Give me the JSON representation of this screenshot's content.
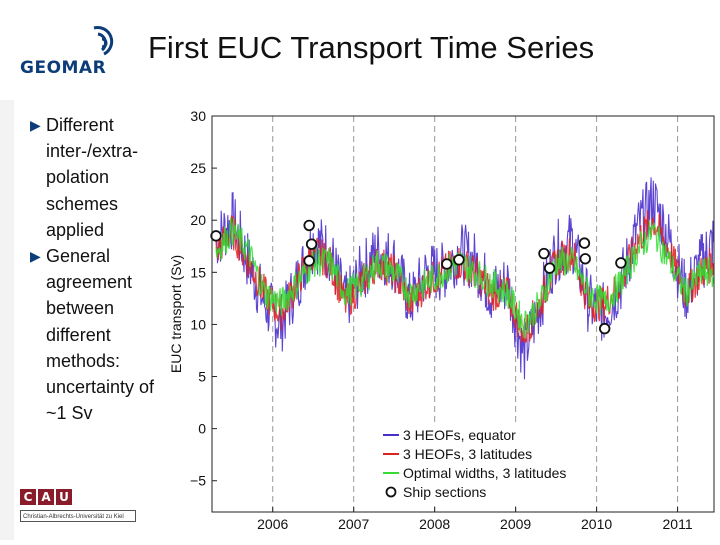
{
  "header": {
    "logo_text": "GEOMAR",
    "title": "First EUC Transport Time Series"
  },
  "bullets": [
    "Different inter-/extra-polation schemes applied",
    "General agreement between different methods: uncertainty of ~1 Sv"
  ],
  "footer_logo": {
    "letters": [
      "C",
      "A",
      "U"
    ],
    "subtitle": "Christian-Albrechts-Universität zu Kiel"
  },
  "colors": {
    "blue": "#4b2fcc",
    "red": "#e01f1f",
    "green": "#33dd33",
    "brand": "#0d3d78",
    "cau": "#8a1b2a"
  },
  "chart_data": {
    "type": "line",
    "title": "",
    "xlabel": "",
    "ylabel": "EUC transport (Sv)",
    "xlim": [
      2005.25,
      2011.45
    ],
    "ylim": [
      -8,
      30
    ],
    "xticks": [
      2006,
      2007,
      2008,
      2009,
      2010,
      2011
    ],
    "xtick_labels": [
      "2006",
      "2007",
      "2008",
      "2009",
      "2010",
      "2011"
    ],
    "yticks": [
      -5,
      0,
      5,
      10,
      15,
      20,
      25,
      30
    ],
    "ytick_labels": [
      "−5",
      "0",
      "5",
      "10",
      "15",
      "20",
      "25",
      "30"
    ],
    "dashed_year_lines": [
      2006,
      2007,
      2008,
      2009,
      2010,
      2011
    ],
    "legend": {
      "placement": "bottom-right",
      "entries": [
        {
          "label": "3 HEOFs, equator",
          "series": "blue"
        },
        {
          "label": "3 HEOFs, 3 latitudes",
          "series": "red"
        },
        {
          "label": "Optimal widths, 3 latitudes",
          "series": "green"
        },
        {
          "label": "Ship sections",
          "series": "ships"
        }
      ]
    },
    "series": [
      {
        "name": "3 HEOFs, equator",
        "color": "blue",
        "x": [
          2005.3,
          2005.5,
          2005.7,
          2005.9,
          2006.1,
          2006.3,
          2006.5,
          2006.7,
          2006.9,
          2007.1,
          2007.3,
          2007.5,
          2007.7,
          2007.9,
          2008.1,
          2008.3,
          2008.5,
          2008.7,
          2008.9,
          2009.1,
          2009.3,
          2009.5,
          2009.7,
          2009.9,
          2010.1,
          2010.3,
          2010.5,
          2010.7,
          2010.9,
          2011.1,
          2011.3,
          2011.45
        ],
        "values": [
          18,
          20,
          16,
          12,
          10,
          14,
          18,
          17,
          12,
          15,
          17,
          16,
          12,
          15,
          15,
          17,
          16,
          13,
          14,
          7,
          12,
          17,
          18,
          12,
          11,
          14,
          19,
          22,
          18,
          13,
          16,
          18
        ]
      },
      {
        "name": "3 HEOFs, 3 latitudes",
        "color": "red",
        "x": [
          2005.3,
          2005.5,
          2005.7,
          2005.9,
          2006.1,
          2006.3,
          2006.5,
          2006.7,
          2006.9,
          2007.1,
          2007.3,
          2007.5,
          2007.7,
          2007.9,
          2008.1,
          2008.3,
          2008.5,
          2008.7,
          2008.9,
          2009.1,
          2009.3,
          2009.5,
          2009.7,
          2009.9,
          2010.1,
          2010.3,
          2010.5,
          2010.7,
          2010.9,
          2011.1,
          2011.3,
          2011.45
        ],
        "values": [
          17,
          19,
          16,
          13,
          11,
          14,
          17,
          16,
          12,
          14,
          16,
          15,
          12,
          14,
          15,
          16,
          15,
          13,
          13,
          9,
          12,
          16,
          17,
          12,
          12,
          14,
          18,
          20,
          17,
          13,
          15,
          16
        ]
      },
      {
        "name": "Optimal widths, 3 latitudes",
        "color": "green",
        "x": [
          2005.3,
          2005.5,
          2005.7,
          2005.9,
          2006.1,
          2006.3,
          2006.5,
          2006.7,
          2006.9,
          2007.1,
          2007.3,
          2007.5,
          2007.7,
          2007.9,
          2008.1,
          2008.3,
          2008.5,
          2008.7,
          2008.9,
          2009.1,
          2009.3,
          2009.5,
          2009.7,
          2009.9,
          2010.1,
          2010.3,
          2010.5,
          2010.7,
          2010.9,
          2011.1,
          2011.3,
          2011.45
        ],
        "values": [
          17,
          19,
          17,
          13,
          12,
          14,
          16,
          16,
          13,
          14,
          16,
          15,
          13,
          14,
          15,
          16,
          15,
          14,
          13,
          10,
          12,
          16,
          16,
          13,
          12,
          14,
          17,
          19,
          16,
          13,
          15,
          15
        ]
      },
      {
        "name": "Ship sections",
        "color": "ships",
        "kind": "points",
        "x": [
          2005.3,
          2006.45,
          2006.48,
          2006.45,
          2008.15,
          2008.3,
          2009.35,
          2009.42,
          2009.85,
          2009.86,
          2010.1,
          2010.3
        ],
        "values": [
          18.5,
          19.5,
          17.7,
          16.1,
          15.8,
          16.2,
          16.8,
          15.4,
          17.8,
          16.3,
          9.6,
          15.9
        ]
      }
    ]
  }
}
